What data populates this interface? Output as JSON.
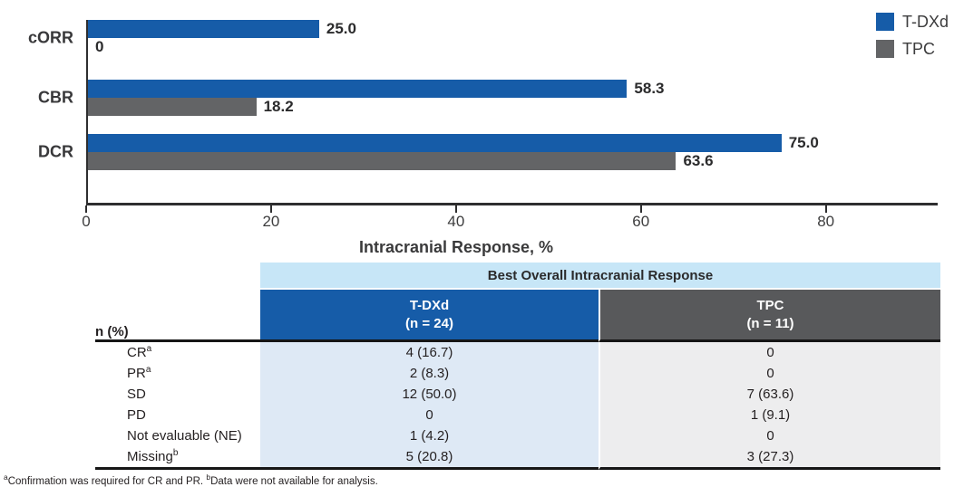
{
  "chart_data": {
    "type": "bar",
    "orientation": "horizontal",
    "title": "",
    "categories": [
      "cORR",
      "CBR",
      "DCR"
    ],
    "series": [
      {
        "name": "T-DXd",
        "color": "#165CA8",
        "values": [
          25.0,
          58.3,
          75.0
        ],
        "labels": [
          "25.0",
          "58.3",
          "75.0"
        ]
      },
      {
        "name": "TPC",
        "color": "#636466",
        "values": [
          0,
          18.2,
          63.6
        ],
        "labels": [
          "0",
          "18.2",
          "63.6"
        ]
      }
    ],
    "xlabel": "Intracranial Response, %",
    "xlim": [
      0,
      91.9
    ],
    "x_ticks": [
      0,
      20,
      40,
      60,
      80
    ],
    "grid": false,
    "legend_position": "top-right"
  },
  "table": {
    "title": "Best Overall Intracranial Response",
    "title_bg": "#C7E6F7",
    "left_header": "n (%)",
    "columns": [
      {
        "name": "T-DXd",
        "sub": "(n = 24)",
        "header_bg": "#165CA8",
        "body_bg": "#DEE9F5"
      },
      {
        "name": "TPC",
        "sub": "(n = 11)",
        "header_bg": "#58595B",
        "body_bg": "#EDEDEE"
      }
    ],
    "rows": [
      {
        "label": "CR",
        "sup": "a",
        "tdxd": "4 (16.7)",
        "tpc": "0"
      },
      {
        "label": "PR",
        "sup": "a",
        "tdxd": "2 (8.3)",
        "tpc": "0"
      },
      {
        "label": "SD",
        "sup": "",
        "tdxd": "12 (50.0)",
        "tpc": "7 (63.6)"
      },
      {
        "label": "PD",
        "sup": "",
        "tdxd": "0",
        "tpc": "1 (9.1)"
      },
      {
        "label": "Not evaluable (NE)",
        "sup": "",
        "tdxd": "1 (4.2)",
        "tpc": "0"
      },
      {
        "label": "Missing",
        "sup": "b",
        "tdxd": "5 (20.8)",
        "tpc": "3 (27.3)"
      }
    ]
  },
  "footnote": {
    "parts": [
      {
        "sup": "a",
        "text": "Confirmation was required for CR and PR. "
      },
      {
        "sup": "b",
        "text": "Data were not available for analysis."
      }
    ]
  }
}
